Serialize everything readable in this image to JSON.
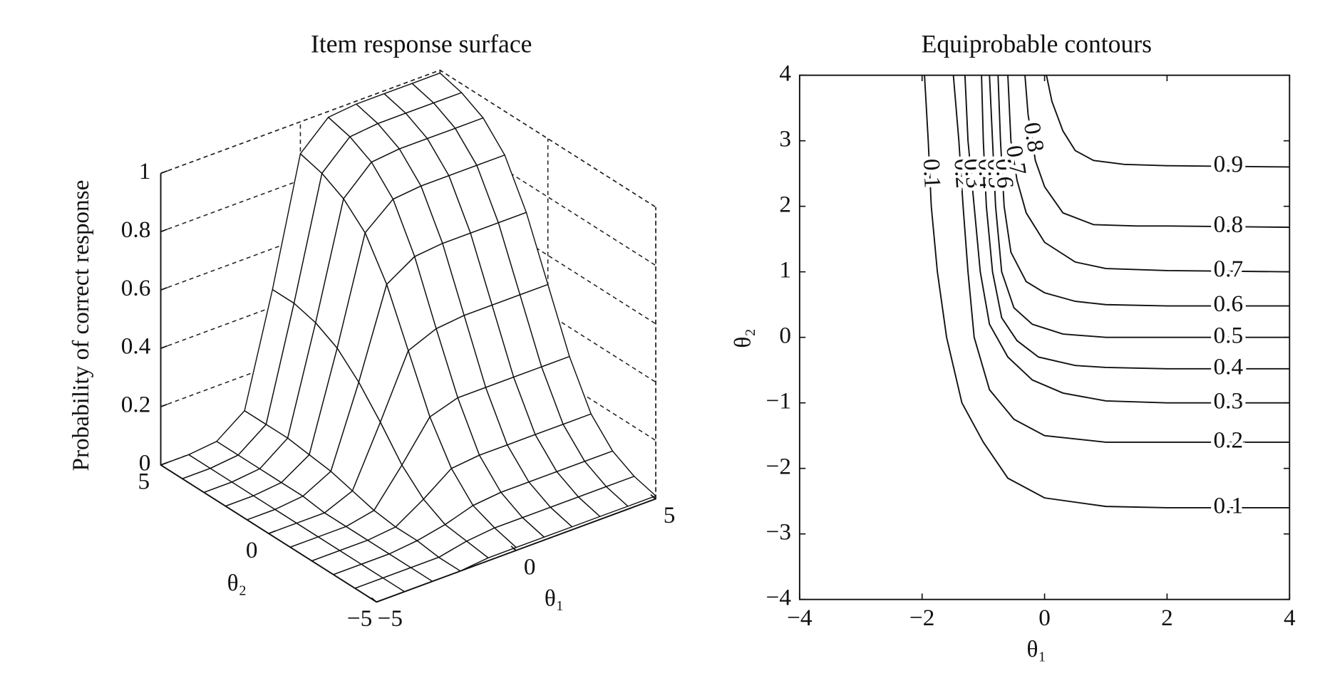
{
  "chart_data": [
    {
      "type": "surface",
      "title": "Item response surface",
      "zlabel": "Probability of correct response",
      "xlabel": "θ₁",
      "ylabel": "θ₂",
      "x": [
        -5,
        -4,
        -3,
        -2,
        -1,
        0,
        1,
        2,
        3,
        4,
        5
      ],
      "y": [
        -5,
        -4,
        -3,
        -2,
        -1,
        0,
        1,
        2,
        3,
        4,
        5
      ],
      "z": [
        [
          0,
          0,
          0,
          0,
          0.01,
          0.01,
          0.01,
          0.01,
          0.01,
          0.01,
          0.01
        ],
        [
          0,
          0,
          0,
          0,
          0.02,
          0.03,
          0.03,
          0.03,
          0.03,
          0.03,
          0.03
        ],
        [
          0,
          0,
          0,
          0.01,
          0.03,
          0.06,
          0.07,
          0.07,
          0.07,
          0.07,
          0.07
        ],
        [
          0,
          0,
          0,
          0.01,
          0.07,
          0.14,
          0.15,
          0.15,
          0.15,
          0.15,
          0.15
        ],
        [
          0,
          0,
          0,
          0.02,
          0.14,
          0.27,
          0.3,
          0.3,
          0.3,
          0.3,
          0.3
        ],
        [
          0,
          0,
          0,
          0.04,
          0.24,
          0.45,
          0.49,
          0.5,
          0.5,
          0.5,
          0.5
        ],
        [
          0,
          0,
          0.01,
          0.06,
          0.33,
          0.63,
          0.69,
          0.7,
          0.7,
          0.7,
          0.7
        ],
        [
          0,
          0,
          0.01,
          0.07,
          0.4,
          0.76,
          0.84,
          0.85,
          0.85,
          0.85,
          0.85
        ],
        [
          0,
          0,
          0.01,
          0.08,
          0.44,
          0.83,
          0.92,
          0.93,
          0.93,
          0.93,
          0.93
        ],
        [
          0,
          0,
          0.01,
          0.08,
          0.46,
          0.87,
          0.96,
          0.97,
          0.97,
          0.97,
          0.97
        ],
        [
          0,
          0,
          0.01,
          0.08,
          0.46,
          0.89,
          0.98,
          0.99,
          0.99,
          0.99,
          0.99
        ]
      ],
      "xlim": [
        -5,
        5
      ],
      "ylim": [
        -5,
        5
      ],
      "zlim": [
        0,
        1
      ],
      "xticks": [
        {
          "value": -5,
          "label": "−5"
        },
        0,
        5
      ],
      "yticks": [
        {
          "value": -5,
          "label": "−5"
        },
        0,
        5
      ],
      "zticks": [
        0,
        0.2,
        0.4,
        0.6,
        0.8,
        1
      ],
      "grid": true
    },
    {
      "type": "contour",
      "title": "Equiprobable contours",
      "xlabel": "θ₁",
      "ylabel": "θ₂",
      "xlim": [
        -4,
        4
      ],
      "ylim": [
        -4,
        4
      ],
      "xticks": [
        {
          "value": -4,
          "label": "−4"
        },
        {
          "value": -2,
          "label": "−2"
        },
        0,
        2,
        4
      ],
      "yticks": [
        {
          "value": -4,
          "label": "−4"
        },
        {
          "value": -3,
          "label": "−3"
        },
        {
          "value": -2,
          "label": "−2"
        },
        {
          "value": -1,
          "label": "−1"
        },
        0,
        1,
        2,
        3,
        4
      ],
      "contours": [
        {
          "level": 0.1,
          "x": [
            -1.96,
            -1.9,
            -1.85,
            -1.75,
            -1.6,
            -1.35,
            -1.0,
            -0.6,
            0,
            1,
            2,
            4
          ],
          "y": [
            4,
            3,
            2,
            1,
            0,
            -1,
            -1.6,
            -2.15,
            -2.45,
            -2.58,
            -2.6,
            -2.6
          ]
        },
        {
          "level": 0.2,
          "x": [
            -1.49,
            -1.4,
            -1.33,
            -1.25,
            -1.15,
            -0.9,
            -0.5,
            0,
            1,
            2,
            4
          ],
          "y": [
            4,
            3,
            2,
            1,
            0,
            -0.8,
            -1.25,
            -1.5,
            -1.6,
            -1.6,
            -1.6
          ]
        },
        {
          "level": 0.3,
          "x": [
            -1.3,
            -1.25,
            -1.15,
            -1.05,
            -0.9,
            -0.6,
            -0.2,
            0.3,
            1,
            2,
            4
          ],
          "y": [
            4,
            3,
            2,
            1,
            0.2,
            -0.3,
            -0.65,
            -0.85,
            -0.97,
            -1,
            -1
          ]
        },
        {
          "level": 0.4,
          "x": [
            -1.03,
            -1.0,
            -0.95,
            -0.85,
            -0.7,
            -0.45,
            -0.1,
            0.5,
            1,
            2,
            4
          ],
          "y": [
            4,
            3,
            2,
            1,
            0.3,
            -0.05,
            -0.3,
            -0.43,
            -0.46,
            -0.48,
            -0.48
          ]
        },
        {
          "level": 0.5,
          "x": [
            -0.9,
            -0.85,
            -0.8,
            -0.7,
            -0.5,
            -0.2,
            0.3,
            1,
            2,
            4
          ],
          "y": [
            4,
            3,
            2,
            1,
            0.45,
            0.2,
            0.05,
            0,
            0,
            0
          ]
        },
        {
          "level": 0.6,
          "x": [
            -0.76,
            -0.72,
            -0.66,
            -0.55,
            -0.3,
            0,
            0.5,
            1,
            2,
            4
          ],
          "y": [
            4,
            3,
            2,
            1.3,
            0.85,
            0.68,
            0.55,
            0.5,
            0.48,
            0.48
          ]
        },
        {
          "level": 0.7,
          "x": [
            -0.6,
            -0.55,
            -0.45,
            -0.3,
            0,
            0.5,
            1,
            2,
            4
          ],
          "y": [
            4,
            3,
            2.4,
            1.9,
            1.45,
            1.15,
            1.05,
            1.02,
            1.0
          ]
        },
        {
          "level": 0.8,
          "x": [
            -0.32,
            -0.27,
            -0.15,
            0,
            0.3,
            0.8,
            1.5,
            2,
            4
          ],
          "y": [
            4,
            3.4,
            2.7,
            2.3,
            1.9,
            1.72,
            1.7,
            1.7,
            1.68
          ]
        },
        {
          "level": 0.9,
          "x": [
            0.03,
            0.12,
            0.3,
            0.5,
            0.8,
            1.3,
            2,
            4
          ],
          "y": [
            4,
            3.6,
            3.15,
            2.85,
            2.7,
            2.64,
            2.62,
            2.6
          ]
        }
      ]
    }
  ]
}
